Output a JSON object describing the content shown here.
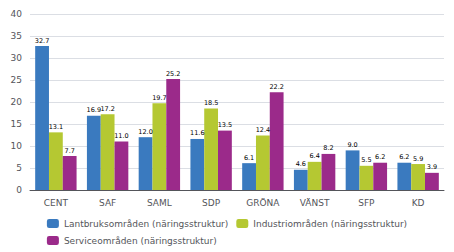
{
  "chart_data": {
    "type": "bar",
    "categories": [
      "CENT",
      "SAF",
      "SAML",
      "SDP",
      "GRÖNA",
      "VÄNST",
      "SFP",
      "KD"
    ],
    "series": [
      {
        "name": "Lantbruksområden (näringsstruktur)",
        "color": "#3a7abf",
        "values": [
          32.7,
          16.9,
          12.0,
          11.6,
          6.1,
          4.6,
          9.0,
          6.2
        ],
        "value_labels": [
          "32.7",
          "16.9",
          "12.0",
          "11.6",
          "6.1",
          "4.6",
          "9.0",
          "6.2"
        ]
      },
      {
        "name": "Industriområden (näringsstruktur)",
        "color": "#b5c832",
        "values": [
          13.1,
          17.2,
          19.7,
          18.5,
          12.4,
          6.4,
          5.5,
          5.9
        ],
        "value_labels": [
          "13.1",
          "17.2",
          "19.7",
          "18.5",
          "12.4",
          "6.4",
          "5.5",
          "5.9"
        ]
      },
      {
        "name": "Serviceområden (näringsstruktur)",
        "color": "#9b2a8a",
        "values": [
          7.7,
          11.0,
          25.2,
          13.5,
          22.2,
          8.2,
          6.2,
          3.9
        ],
        "value_labels": [
          "7.7",
          "11.0",
          "25.2",
          "13.5",
          "22.2",
          "8.2",
          "6.2",
          "3.9"
        ]
      }
    ],
    "ylim": [
      0,
      40
    ],
    "yticks": [
      0,
      5,
      10,
      15,
      20,
      25,
      30,
      35,
      40
    ],
    "grid": true,
    "data_labels": true,
    "legend": "bottom"
  }
}
